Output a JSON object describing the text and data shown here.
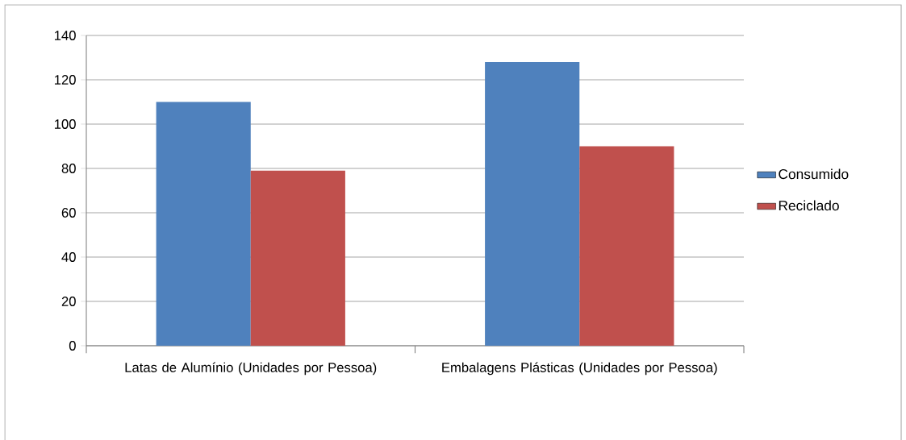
{
  "chart_data": {
    "type": "bar",
    "categories": [
      "Latas de Alumínio (Unidades por Pessoa)",
      "Embalagens Plásticas (Unidades por Pessoa)"
    ],
    "series": [
      {
        "name": "Consumido",
        "color": "#4f81bd",
        "values": [
          110,
          128
        ]
      },
      {
        "name": "Reciclado",
        "color": "#c0504d",
        "values": [
          79,
          90
        ]
      }
    ],
    "ylim": [
      0,
      140
    ],
    "yticks": [
      0,
      20,
      40,
      60,
      80,
      100,
      120,
      140
    ],
    "grid": "y",
    "legend": "right"
  }
}
